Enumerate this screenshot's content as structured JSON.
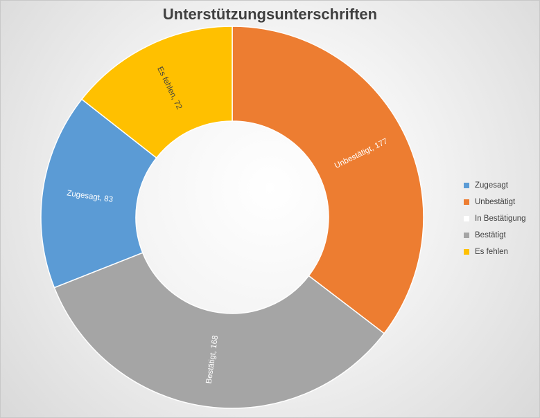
{
  "chart_data": {
    "type": "pie",
    "title": "Unterstützungsunterschriften",
    "categories": [
      "Zugesagt",
      "Unbestätigt",
      "In Bestätigung",
      "Bestätigt",
      "Es fehlen"
    ],
    "values": [
      83,
      177,
      0,
      168,
      72
    ],
    "data_labels": [
      "Zugesagt, 83",
      "Unbestätigt, 177",
      "",
      "Bestätigt, 168",
      "Es fehlen, 72"
    ],
    "colors": [
      "#5B9BD5",
      "#ED7D31",
      "#FFFFFF",
      "#A5A5A5",
      "#FFC000"
    ],
    "legend_position": "right",
    "donut": true
  }
}
